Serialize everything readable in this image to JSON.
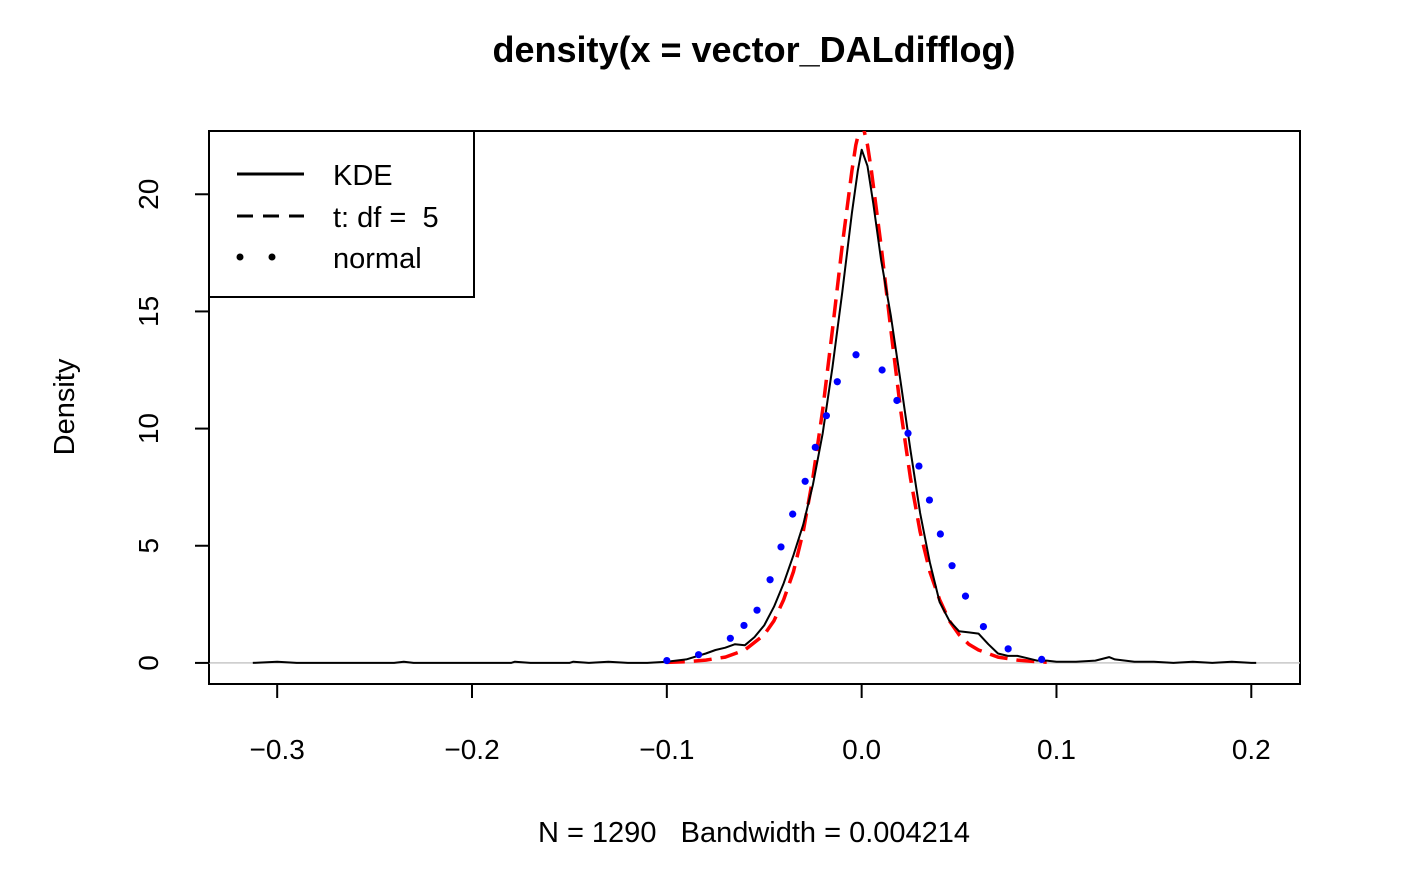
{
  "chart_data": {
    "type": "line",
    "title": "density(x = vector_DALdifflog)",
    "xlabel": "N = 1290   Bandwidth = 0.004214",
    "ylabel": "Density",
    "xlim": [
      -0.335,
      0.225
    ],
    "ylim": [
      -0.9,
      22.7
    ],
    "x_ticks": [
      -0.3,
      -0.2,
      -0.1,
      0.0,
      0.1,
      0.2
    ],
    "x_tick_labels": [
      "−0.3",
      "−0.2",
      "−0.1",
      "0.0",
      "0.1",
      "0.2"
    ],
    "y_ticks": [
      0,
      5,
      10,
      15,
      20
    ],
    "y_tick_labels": [
      "0",
      "5",
      "10",
      "15",
      "20"
    ],
    "baseline_y": 0,
    "legend": {
      "position": "top-left",
      "entries": [
        {
          "label": "KDE",
          "style": "solid",
          "color": "#000000"
        },
        {
          "label": "t: df =  5",
          "style": "dashed",
          "color": "#000000"
        },
        {
          "label": "normal",
          "style": "dotted",
          "color": "#000000"
        }
      ]
    },
    "series": [
      {
        "name": "KDE",
        "style": "solid",
        "color": "#000000",
        "x": [
          -0.3125,
          -0.3,
          -0.29,
          -0.28,
          -0.26,
          -0.24,
          -0.235,
          -0.23,
          -0.2,
          -0.18,
          -0.178,
          -0.17,
          -0.15,
          -0.148,
          -0.14,
          -0.13,
          -0.12,
          -0.11,
          -0.1,
          -0.09,
          -0.08,
          -0.075,
          -0.07,
          -0.065,
          -0.06,
          -0.055,
          -0.05,
          -0.045,
          -0.04,
          -0.035,
          -0.03,
          -0.025,
          -0.02,
          -0.015,
          -0.01,
          -0.005,
          -0.002,
          0.0,
          0.003,
          0.006,
          0.01,
          0.015,
          0.02,
          0.025,
          0.03,
          0.035,
          0.04,
          0.045,
          0.05,
          0.055,
          0.06,
          0.065,
          0.07,
          0.075,
          0.08,
          0.085,
          0.09,
          0.095,
          0.1,
          0.11,
          0.12,
          0.127,
          0.13,
          0.14,
          0.15,
          0.16,
          0.17,
          0.18,
          0.19,
          0.2,
          0.2025
        ],
        "y": [
          0.0,
          0.05,
          0.0,
          0.0,
          0.0,
          0.0,
          0.05,
          0.0,
          0.0,
          0.0,
          0.05,
          0.0,
          0.0,
          0.05,
          0.0,
          0.05,
          0.0,
          0.0,
          0.05,
          0.15,
          0.4,
          0.55,
          0.65,
          0.8,
          0.75,
          1.1,
          1.6,
          2.4,
          3.4,
          4.6,
          5.9,
          7.6,
          9.8,
          12.6,
          15.8,
          19.2,
          21.0,
          21.9,
          21.2,
          19.6,
          17.2,
          14.8,
          12.0,
          9.1,
          6.4,
          4.3,
          2.6,
          1.8,
          1.35,
          1.3,
          1.25,
          0.8,
          0.4,
          0.3,
          0.3,
          0.2,
          0.1,
          0.1,
          0.05,
          0.05,
          0.1,
          0.25,
          0.15,
          0.05,
          0.05,
          0.0,
          0.05,
          0.0,
          0.05,
          0.0,
          0.0
        ]
      },
      {
        "name": "t: df =  5",
        "style": "dashed",
        "color": "#ff0000",
        "x": [
          -0.1,
          -0.09,
          -0.08,
          -0.07,
          -0.06,
          -0.05,
          -0.045,
          -0.04,
          -0.035,
          -0.03,
          -0.025,
          -0.02,
          -0.015,
          -0.01,
          -0.005,
          -0.003,
          -0.001,
          0.0,
          0.001,
          0.003,
          0.005,
          0.01,
          0.015,
          0.02,
          0.025,
          0.03,
          0.035,
          0.04,
          0.045,
          0.05,
          0.055,
          0.06,
          0.07,
          0.08,
          0.09,
          0.095
        ],
        "y": [
          0.02,
          0.05,
          0.12,
          0.25,
          0.55,
          1.2,
          1.8,
          2.7,
          3.9,
          5.6,
          7.9,
          10.8,
          14.2,
          17.8,
          21.0,
          22.1,
          22.8,
          23.0,
          22.8,
          22.1,
          21.0,
          17.8,
          14.2,
          10.8,
          7.9,
          5.6,
          3.9,
          2.7,
          1.8,
          1.2,
          0.8,
          0.55,
          0.25,
          0.12,
          0.05,
          0.03
        ]
      },
      {
        "name": "normal",
        "style": "dotted",
        "color": "#0000ff",
        "x": [
          -0.1,
          -0.0837,
          -0.0674,
          -0.0604,
          -0.0537,
          -0.047,
          -0.0414,
          -0.0354,
          -0.029,
          -0.0238,
          -0.0181,
          -0.0125,
          -0.0029,
          0.0105,
          0.0181,
          0.0238,
          0.0294,
          0.0348,
          0.0404,
          0.0464,
          0.0533,
          0.0625,
          0.0752,
          0.0924
        ],
        "y": [
          0.1,
          0.35,
          1.05,
          1.6,
          2.25,
          3.55,
          4.95,
          6.35,
          7.75,
          9.2,
          10.55,
          12.0,
          13.15,
          12.5,
          11.2,
          9.8,
          8.4,
          6.95,
          5.5,
          4.15,
          2.85,
          1.55,
          0.6,
          0.15
        ]
      }
    ]
  }
}
